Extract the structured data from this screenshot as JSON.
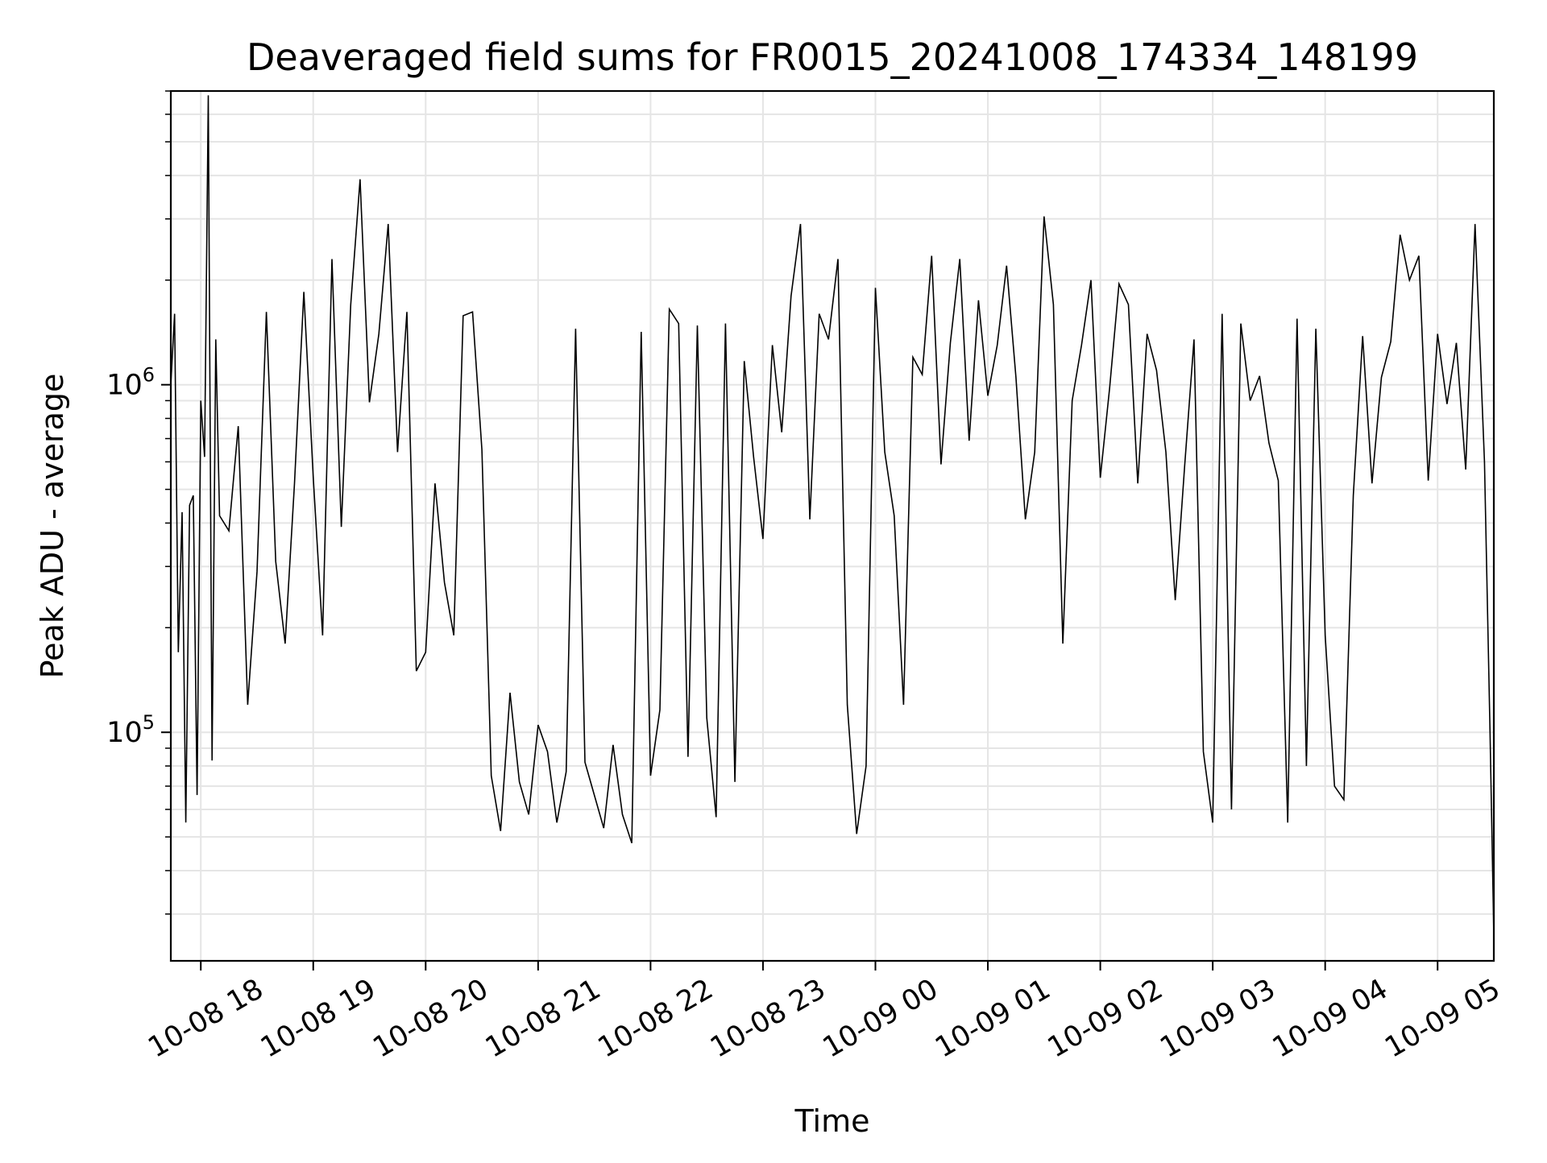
{
  "chart_data": {
    "type": "line",
    "title": "Deaveraged field sums for FR0015_20241008_174334_148199",
    "xlabel": "Time",
    "ylabel": "Peak ADU - average",
    "y_scale": "log",
    "ylim": [
      22000,
      7000000
    ],
    "xlim": [
      "2024-10-08 17:44",
      "2024-10-09 05:30"
    ],
    "grid": true,
    "legend": "none",
    "colors": {
      "line": "#000000",
      "grid": "#e5e5e5",
      "axes": "#000000"
    },
    "x_ticks": [
      {
        "value": "2024-10-08 18:00",
        "label": "10-08 18"
      },
      {
        "value": "2024-10-08 19:00",
        "label": "10-08 19"
      },
      {
        "value": "2024-10-08 20:00",
        "label": "10-08 20"
      },
      {
        "value": "2024-10-08 21:00",
        "label": "10-08 21"
      },
      {
        "value": "2024-10-08 22:00",
        "label": "10-08 22"
      },
      {
        "value": "2024-10-08 23:00",
        "label": "10-08 23"
      },
      {
        "value": "2024-10-09 00:00",
        "label": "10-09 00"
      },
      {
        "value": "2024-10-09 01:00",
        "label": "10-09 01"
      },
      {
        "value": "2024-10-09 02:00",
        "label": "10-09 02"
      },
      {
        "value": "2024-10-09 03:00",
        "label": "10-09 03"
      },
      {
        "value": "2024-10-09 04:00",
        "label": "10-09 04"
      },
      {
        "value": "2024-10-09 05:00",
        "label": "10-09 05"
      }
    ],
    "y_ticks": [
      {
        "value": 100000,
        "base": "10",
        "exponent": "5"
      },
      {
        "value": 1000000,
        "base": "10",
        "exponent": "6"
      }
    ],
    "series": [
      {
        "x": [
          "2024-10-08 17:44",
          "2024-10-08 17:46",
          "2024-10-08 17:48",
          "2024-10-08 17:50",
          "2024-10-08 17:52",
          "2024-10-08 17:54",
          "2024-10-08 17:56",
          "2024-10-08 17:58",
          "2024-10-08 18:00",
          "2024-10-08 18:02",
          "2024-10-08 18:04",
          "2024-10-08 18:06",
          "2024-10-08 18:08",
          "2024-10-08 18:10",
          "2024-10-08 18:15",
          "2024-10-08 18:20",
          "2024-10-08 18:25",
          "2024-10-08 18:30",
          "2024-10-08 18:35",
          "2024-10-08 18:40",
          "2024-10-08 18:45",
          "2024-10-08 18:50",
          "2024-10-08 18:55",
          "2024-10-08 19:00",
          "2024-10-08 19:05",
          "2024-10-08 19:10",
          "2024-10-08 19:15",
          "2024-10-08 19:20",
          "2024-10-08 19:25",
          "2024-10-08 19:30",
          "2024-10-08 19:35",
          "2024-10-08 19:40",
          "2024-10-08 19:45",
          "2024-10-08 19:50",
          "2024-10-08 19:55",
          "2024-10-08 20:00",
          "2024-10-08 20:05",
          "2024-10-08 20:10",
          "2024-10-08 20:15",
          "2024-10-08 20:20",
          "2024-10-08 20:25",
          "2024-10-08 20:30",
          "2024-10-08 20:35",
          "2024-10-08 20:40",
          "2024-10-08 20:45",
          "2024-10-08 20:50",
          "2024-10-08 20:55",
          "2024-10-08 21:00",
          "2024-10-08 21:05",
          "2024-10-08 21:10",
          "2024-10-08 21:15",
          "2024-10-08 21:20",
          "2024-10-08 21:25",
          "2024-10-08 21:30",
          "2024-10-08 21:35",
          "2024-10-08 21:40",
          "2024-10-08 21:45",
          "2024-10-08 21:50",
          "2024-10-08 21:55",
          "2024-10-08 22:00",
          "2024-10-08 22:05",
          "2024-10-08 22:10",
          "2024-10-08 22:15",
          "2024-10-08 22:20",
          "2024-10-08 22:25",
          "2024-10-08 22:30",
          "2024-10-08 22:35",
          "2024-10-08 22:40",
          "2024-10-08 22:45",
          "2024-10-08 22:50",
          "2024-10-08 22:55",
          "2024-10-08 23:00",
          "2024-10-08 23:05",
          "2024-10-08 23:10",
          "2024-10-08 23:15",
          "2024-10-08 23:20",
          "2024-10-08 23:25",
          "2024-10-08 23:30",
          "2024-10-08 23:35",
          "2024-10-08 23:40",
          "2024-10-08 23:45",
          "2024-10-08 23:50",
          "2024-10-08 23:55",
          "2024-10-09 00:00",
          "2024-10-09 00:05",
          "2024-10-09 00:10",
          "2024-10-09 00:15",
          "2024-10-09 00:20",
          "2024-10-09 00:25",
          "2024-10-09 00:30",
          "2024-10-09 00:35",
          "2024-10-09 00:40",
          "2024-10-09 00:45",
          "2024-10-09 00:50",
          "2024-10-09 00:55",
          "2024-10-09 01:00",
          "2024-10-09 01:05",
          "2024-10-09 01:10",
          "2024-10-09 01:15",
          "2024-10-09 01:20",
          "2024-10-09 01:25",
          "2024-10-09 01:30",
          "2024-10-09 01:35",
          "2024-10-09 01:40",
          "2024-10-09 01:45",
          "2024-10-09 01:50",
          "2024-10-09 01:55",
          "2024-10-09 02:00",
          "2024-10-09 02:05",
          "2024-10-09 02:10",
          "2024-10-09 02:15",
          "2024-10-09 02:20",
          "2024-10-09 02:25",
          "2024-10-09 02:30",
          "2024-10-09 02:35",
          "2024-10-09 02:40",
          "2024-10-09 02:45",
          "2024-10-09 02:50",
          "2024-10-09 02:55",
          "2024-10-09 03:00",
          "2024-10-09 03:05",
          "2024-10-09 03:10",
          "2024-10-09 03:15",
          "2024-10-09 03:20",
          "2024-10-09 03:25",
          "2024-10-09 03:30",
          "2024-10-09 03:35",
          "2024-10-09 03:40",
          "2024-10-09 03:45",
          "2024-10-09 03:50",
          "2024-10-09 03:55",
          "2024-10-09 04:00",
          "2024-10-09 04:05",
          "2024-10-09 04:10",
          "2024-10-09 04:15",
          "2024-10-09 04:20",
          "2024-10-09 04:25",
          "2024-10-09 04:30",
          "2024-10-09 04:35",
          "2024-10-09 04:40",
          "2024-10-09 04:45",
          "2024-10-09 04:50",
          "2024-10-09 04:55",
          "2024-10-09 05:00",
          "2024-10-09 05:05",
          "2024-10-09 05:10",
          "2024-10-09 05:15",
          "2024-10-09 05:20",
          "2024-10-09 05:25",
          "2024-10-09 05:28",
          "2024-10-09 05:30"
        ],
        "y": [
          1000000,
          1600000,
          170000,
          430000,
          55000,
          450000,
          480000,
          66000,
          900000,
          620000,
          6800000,
          83000,
          1350000,
          420000,
          380000,
          760000,
          120000,
          290000,
          1620000,
          310000,
          180000,
          520000,
          1850000,
          540000,
          190000,
          2300000,
          390000,
          1700000,
          3900000,
          890000,
          1400000,
          2900000,
          640000,
          1620000,
          150000,
          170000,
          520000,
          270000,
          190000,
          1580000,
          1620000,
          650000,
          75000,
          52000,
          130000,
          72000,
          58000,
          105000,
          88000,
          55000,
          77000,
          1450000,
          82000,
          66000,
          53000,
          92000,
          58000,
          48000,
          1420000,
          75000,
          116000,
          1650000,
          1500000,
          85000,
          1480000,
          110000,
          57000,
          1500000,
          72000,
          1170000,
          620000,
          360000,
          1300000,
          730000,
          1800000,
          2900000,
          410000,
          1600000,
          1350000,
          2300000,
          120000,
          51000,
          80000,
          1900000,
          640000,
          420000,
          120000,
          1200000,
          1070000,
          2350000,
          590000,
          1320000,
          2300000,
          690000,
          1750000,
          930000,
          1300000,
          2200000,
          1050000,
          410000,
          640000,
          3050000,
          1700000,
          180000,
          900000,
          1300000,
          2000000,
          540000,
          980000,
          1950000,
          1700000,
          520000,
          1400000,
          1100000,
          640000,
          240000,
          580000,
          1350000,
          88000,
          55000,
          1600000,
          60000,
          1500000,
          900000,
          1060000,
          680000,
          530000,
          55000,
          1550000,
          80000,
          1450000,
          190000,
          70000,
          64000,
          480000,
          1380000,
          520000,
          1050000,
          1330000,
          2700000,
          2000000,
          2350000,
          530000,
          1400000,
          880000,
          1320000,
          570000,
          2900000,
          600000,
          100000,
          26000
        ]
      }
    ]
  }
}
